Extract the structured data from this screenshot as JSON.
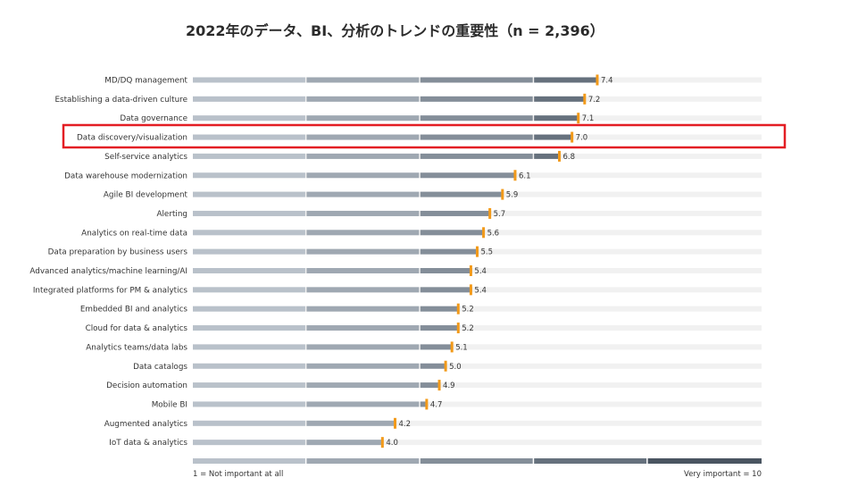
{
  "chart_data": {
    "type": "bar",
    "title": "2022年のデータ、BI、分析のトレンドの重要性（n = 2,396）",
    "categories": [
      "MD/DQ management",
      "Establishing a data-driven culture",
      "Data governance",
      "Data discovery/visualization",
      "Self-service analytics",
      "Data warehouse modernization",
      "Agile BI development",
      "Alerting",
      "Analytics on real-time data",
      "Data preparation by business users",
      "Advanced analytics/machine learning/AI",
      "Integrated platforms for PM & analytics",
      "Embedded BI and analytics",
      "Cloud for data & analytics",
      "Analytics teams/data labs",
      "Data catalogs",
      "Decision automation",
      "Mobile BI",
      "Augmented analytics",
      "IoT data & analytics"
    ],
    "values": [
      7.4,
      7.2,
      7.1,
      7.0,
      6.8,
      6.1,
      5.9,
      5.7,
      5.6,
      5.5,
      5.4,
      5.4,
      5.2,
      5.2,
      5.1,
      5.0,
      4.9,
      4.7,
      4.2,
      4.0
    ],
    "value_labels": [
      "7.4",
      "7.2",
      "7.1",
      "7.0",
      "6.8",
      "6.1",
      "5.9",
      "5.7",
      "5.6",
      "5.5",
      "5.4",
      "5.4",
      "5.2",
      "5.2",
      "5.1",
      "5.0",
      "4.9",
      "4.7",
      "4.2",
      "4.0"
    ],
    "xlim": [
      1,
      10
    ],
    "scale_left_label": "1 = Not important at all",
    "scale_right_label": "Very important = 10",
    "highlighted_category": "Data discovery/visualization",
    "colors": {
      "segments": [
        "#b9c1ca",
        "#9fa8b2",
        "#848e99",
        "#66717d",
        "#4a5561"
      ],
      "track": "#f1f1f1",
      "marker": "#f29a1a",
      "highlight": "#e31e24"
    }
  }
}
